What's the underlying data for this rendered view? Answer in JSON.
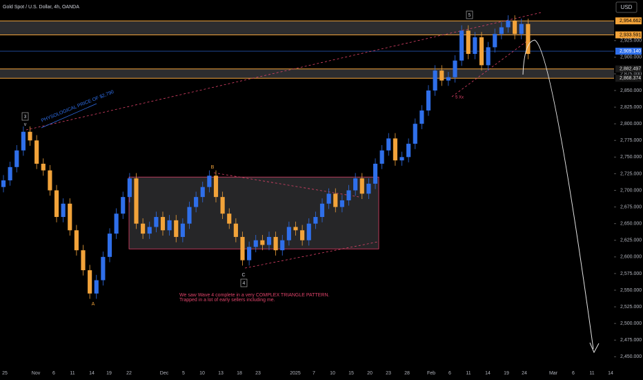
{
  "chart_data": {
    "type": "candlestick",
    "title": "Gold Spot / U.S. Dollar, 4h, OANDA",
    "currency": "USD",
    "up_color": "#2f6fea",
    "down_color": "#f2a33a",
    "ylim": [
      2441,
      2986
    ],
    "yticks": [
      {
        "value": 2450,
        "label": "2,450.000"
      },
      {
        "value": 2475,
        "label": "2,475.000"
      },
      {
        "value": 2500,
        "label": "2,500.000"
      },
      {
        "value": 2525,
        "label": "2,525.000"
      },
      {
        "value": 2550,
        "label": "2,550.000"
      },
      {
        "value": 2575,
        "label": "2,575.000"
      },
      {
        "value": 2600,
        "label": "2,600.000"
      },
      {
        "value": 2625,
        "label": "2,625.000"
      },
      {
        "value": 2650,
        "label": "2,650.000"
      },
      {
        "value": 2675,
        "label": "2,675.000"
      },
      {
        "value": 2700,
        "label": "2,700.000"
      },
      {
        "value": 2725,
        "label": "2,725.000"
      },
      {
        "value": 2750,
        "label": "2,750.000"
      },
      {
        "value": 2775,
        "label": "2,775.000"
      },
      {
        "value": 2800,
        "label": "2,800.000"
      },
      {
        "value": 2825,
        "label": "2,825.000"
      },
      {
        "value": 2850,
        "label": "2,850.000"
      },
      {
        "value": 2875,
        "label": "2,875.000"
      },
      {
        "value": 2900,
        "label": "2,900.000"
      },
      {
        "value": 2925,
        "label": "2,925.000"
      }
    ],
    "xtick_labels": [
      "25",
      "Nov",
      "6",
      "11",
      "14",
      "19",
      "22",
      "Dec",
      "5",
      "10",
      "13",
      "18",
      "23",
      "2025",
      "7",
      "10",
      "15",
      "20",
      "23",
      "28",
      "Feb",
      "6",
      "11",
      "14",
      "19",
      "24",
      "Mar",
      "6",
      "11",
      "14"
    ],
    "open": [
      2705,
      2715,
      2735,
      2760,
      2788,
      2775,
      2740,
      2730,
      2700,
      2660,
      2680,
      2640,
      2610,
      2580,
      2545,
      2565,
      2600,
      2635,
      2665,
      2690,
      2718,
      2650,
      2635,
      2645,
      2660,
      2640,
      2655,
      2630,
      2650,
      2675,
      2690,
      2705,
      2722,
      2690,
      2665,
      2650,
      2630,
      2595,
      2615,
      2625,
      2618,
      2630,
      2610,
      2625,
      2645,
      2640,
      2625,
      2650,
      2660,
      2680,
      2695,
      2675,
      2685,
      2700,
      2718,
      2695,
      2710,
      2740,
      2760,
      2778,
      2745,
      2750,
      2770,
      2800,
      2820,
      2850,
      2880,
      2865,
      2870,
      2895,
      2940,
      2905,
      2930,
      2888,
      2915,
      2935,
      2945,
      2955,
      2935,
      2950
    ],
    "high": [
      2723,
      2743,
      2768,
      2796,
      2796,
      2783,
      2748,
      2738,
      2708,
      2688,
      2688,
      2648,
      2618,
      2588,
      2573,
      2608,
      2643,
      2673,
      2698,
      2726,
      2726,
      2658,
      2653,
      2668,
      2668,
      2663,
      2663,
      2658,
      2683,
      2698,
      2713,
      2730,
      2730,
      2698,
      2673,
      2658,
      2638,
      2623,
      2633,
      2633,
      2638,
      2638,
      2633,
      2653,
      2653,
      2648,
      2658,
      2668,
      2688,
      2703,
      2703,
      2693,
      2708,
      2726,
      2726,
      2718,
      2748,
      2768,
      2786,
      2786,
      2758,
      2778,
      2808,
      2828,
      2858,
      2888,
      2888,
      2878,
      2903,
      2948,
      2948,
      2938,
      2938,
      2923,
      2943,
      2953,
      2963,
      2963,
      2958,
      2958
    ],
    "low": [
      2697,
      2707,
      2727,
      2752,
      2767,
      2732,
      2722,
      2692,
      2652,
      2652,
      2632,
      2602,
      2572,
      2537,
      2537,
      2557,
      2592,
      2627,
      2657,
      2682,
      2642,
      2627,
      2627,
      2637,
      2632,
      2632,
      2622,
      2622,
      2642,
      2667,
      2682,
      2697,
      2682,
      2657,
      2642,
      2622,
      2587,
      2587,
      2607,
      2610,
      2610,
      2602,
      2602,
      2617,
      2632,
      2617,
      2617,
      2642,
      2652,
      2672,
      2667,
      2667,
      2677,
      2692,
      2687,
      2687,
      2702,
      2732,
      2752,
      2737,
      2737,
      2742,
      2762,
      2792,
      2812,
      2842,
      2857,
      2857,
      2862,
      2887,
      2897,
      2897,
      2880,
      2880,
      2907,
      2927,
      2937,
      2927,
      2927,
      2897
    ],
    "close": [
      2715,
      2735,
      2760,
      2788,
      2775,
      2740,
      2730,
      2700,
      2660,
      2680,
      2640,
      2610,
      2580,
      2545,
      2565,
      2600,
      2635,
      2665,
      2690,
      2718,
      2650,
      2635,
      2645,
      2660,
      2640,
      2655,
      2630,
      2650,
      2675,
      2690,
      2705,
      2722,
      2690,
      2665,
      2650,
      2630,
      2595,
      2615,
      2625,
      2618,
      2630,
      2610,
      2625,
      2645,
      2640,
      2625,
      2650,
      2660,
      2680,
      2695,
      2675,
      2685,
      2700,
      2718,
      2695,
      2710,
      2740,
      2760,
      2778,
      2745,
      2750,
      2770,
      2800,
      2820,
      2850,
      2880,
      2865,
      2870,
      2895,
      2940,
      2905,
      2930,
      2888,
      2915,
      2935,
      2945,
      2955,
      2935,
      2950,
      2905
    ],
    "zones": [
      {
        "high": 2954.662,
        "low": 2933.591,
        "high_label": "2,954.662",
        "low_label": "2,933.591"
      },
      {
        "high": 2882.497,
        "low": 2868.374,
        "high_label": "2,882.497",
        "low_label": "2,868.374"
      }
    ],
    "last_price": 2909.14,
    "last_price_label": "2,909.140",
    "triangle_box": {
      "high": 2720,
      "low": 2612
    },
    "annotations": {
      "trendline_label": "PHYSOLOGICAL PRICE OF $2,790",
      "wave3": "3",
      "wave3_sub": "v",
      "wave5": "5",
      "wave4": "4",
      "waveA": "A",
      "waveB": "B",
      "waveC": "C",
      "subwave": "5 Xx",
      "note_line1": "We saw Wave 4 complete in a very COMPLEX TRIANGLE PATTERN.",
      "note_line2": "Trapped in a lot of early sellers including me."
    }
  }
}
